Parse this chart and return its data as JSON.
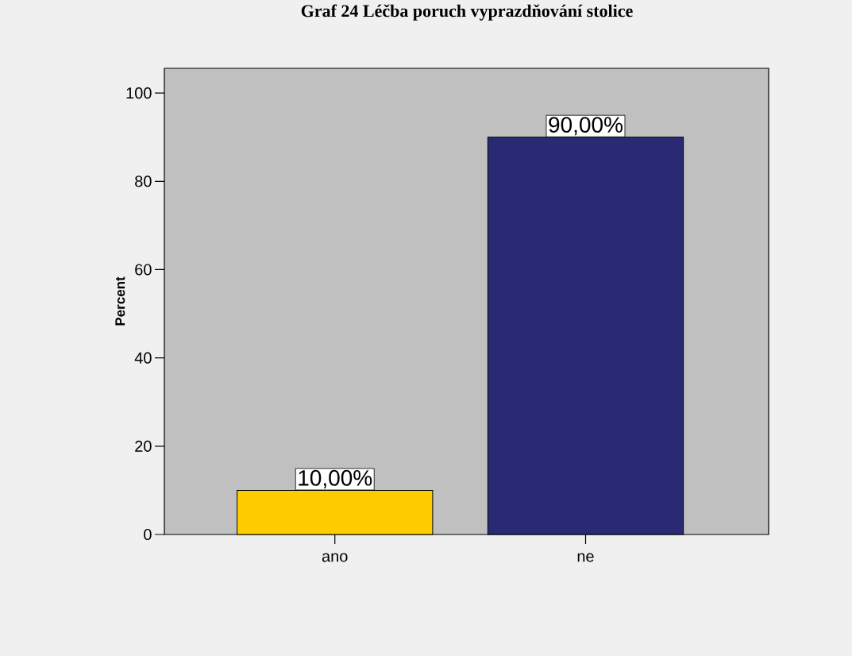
{
  "chart_data": {
    "type": "bar",
    "title": "Graf 24 Léčba poruch vyprazdňování stolice",
    "ylabel": "Percent",
    "categories": [
      "ano",
      "ne"
    ],
    "values": [
      10,
      90
    ],
    "colors": [
      "#ffcc00",
      "#292a73"
    ],
    "value_labels": [
      "10,00%",
      "90,00%"
    ],
    "ylim": [
      0,
      105.6
    ],
    "yticks": [
      0,
      20,
      40,
      60,
      80,
      100
    ]
  }
}
